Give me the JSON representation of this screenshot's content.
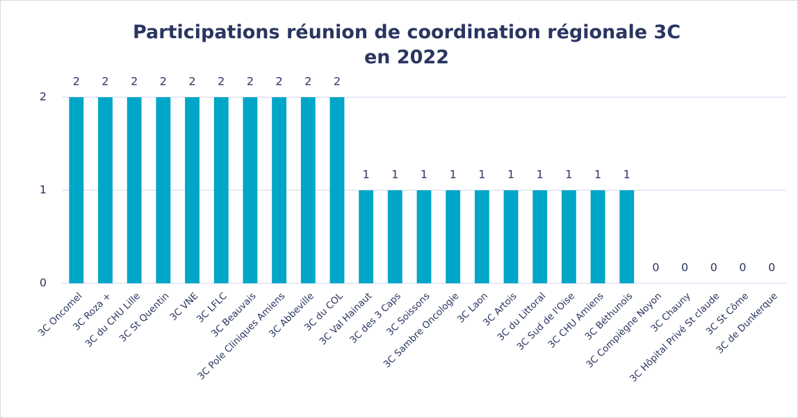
{
  "chart_data": {
    "type": "bar",
    "title": "Participations réunion de coordination régionale 3C en 2022",
    "categories": [
      "3C Oncomel",
      "3C Roza +",
      "3C du CHU Lille",
      "3C St Quentin",
      "3C VNE",
      "3C LFLC",
      "3C Beauvais",
      "3C Pole Cliniques Amiens",
      "3C Abbeville",
      "3C du COL",
      "3C Val Hainaut",
      "3C des 3 Caps",
      "3C Soissons",
      "3C Sambre Oncologie",
      "3C Laon",
      "3C Artois",
      "3C du Littoral",
      "3C Sud de l'Oise",
      "3C CHU Amiens",
      "3C Béthunois",
      "3C Compiègne Noyon",
      "3C Chauny",
      "3C Hôpital Privé St claude",
      "3C St Côme",
      "3C de Dunkerque"
    ],
    "values": [
      2,
      2,
      2,
      2,
      2,
      2,
      2,
      2,
      2,
      2,
      1,
      1,
      1,
      1,
      1,
      1,
      1,
      1,
      1,
      1,
      0,
      0,
      0,
      0,
      0
    ],
    "color": "#00a6c7",
    "ylim": [
      0,
      2
    ],
    "yticks": [
      0,
      1,
      2
    ],
    "grid": true
  }
}
